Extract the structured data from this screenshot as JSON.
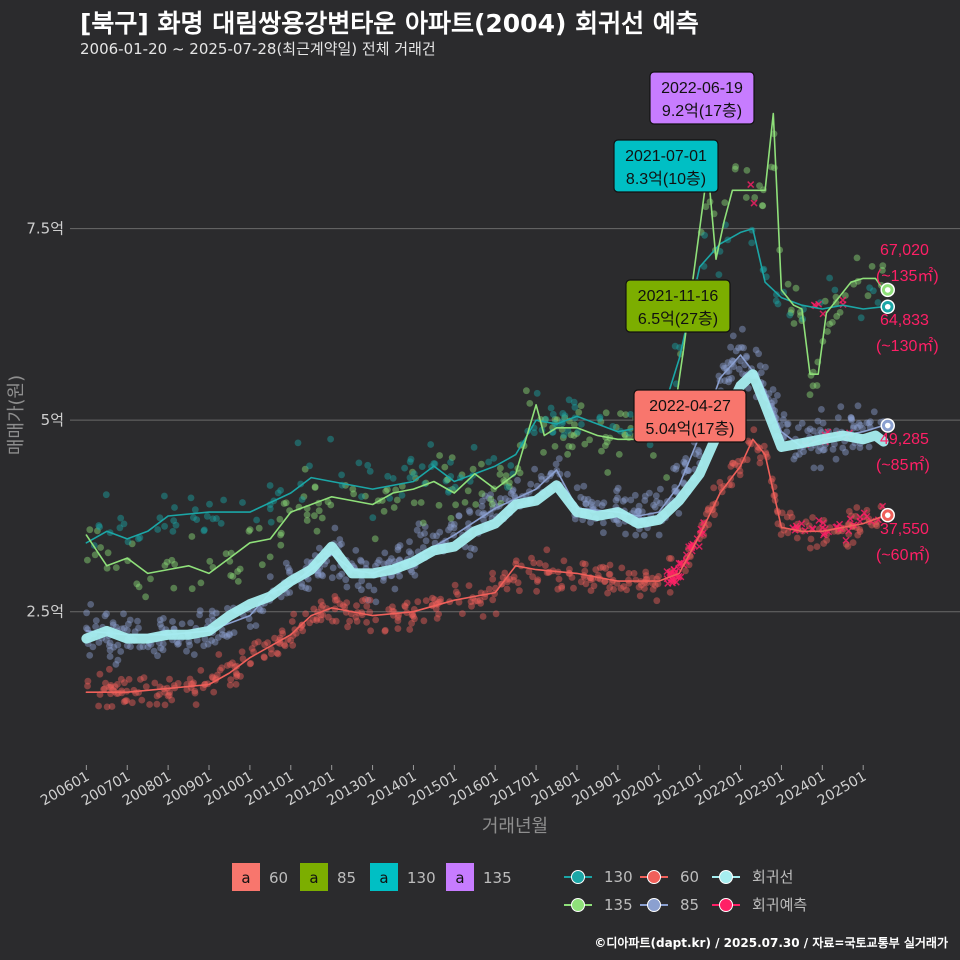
{
  "header": {
    "title": "[북구] 화명 대림쌍용강변타운 아파트(2004) 회귀선 예측",
    "subtitle": "2006-01-20 ~ 2025-07-28(최근계약일) 전체 거래건",
    "credit": "©디아파트(dapt.kr) / 2025.07.30 / 자료=국토교통부 실거래가"
  },
  "colors": {
    "background": "#2b2b2d",
    "grid": "#6a6a6a",
    "s60": "#f0605a",
    "s85": "#8ba0d0",
    "s130": "#1ba6a6",
    "s135": "#8fe07a",
    "regression": "#a6eef0",
    "prediction": "#ff1f66",
    "label60": "#f8766d",
    "label85": "#7cae00",
    "label130": "#00bfc4",
    "label135": "#c77cff"
  },
  "chart_data": {
    "type": "line",
    "xlabel": "거래년월",
    "ylabel": "매매가(원)",
    "ylim": [
      0.5,
      9.7
    ],
    "xlim": [
      2005.6,
      2025.9
    ],
    "y_ticks": [
      {
        "value": 2.5,
        "label": "2.5억"
      },
      {
        "value": 5,
        "label": "5억"
      },
      {
        "value": 7.5,
        "label": "7.5억"
      }
    ],
    "x_ticks": [
      {
        "value": 2006,
        "label": "200601"
      },
      {
        "value": 2007,
        "label": "200701"
      },
      {
        "value": 2008,
        "label": "200801"
      },
      {
        "value": 2009,
        "label": "200901"
      },
      {
        "value": 2010,
        "label": "201001"
      },
      {
        "value": 2011,
        "label": "201101"
      },
      {
        "value": 2012,
        "label": "201201"
      },
      {
        "value": 2013,
        "label": "201301"
      },
      {
        "value": 2014,
        "label": "201401"
      },
      {
        "value": 2015,
        "label": "201501"
      },
      {
        "value": 2016,
        "label": "201601"
      },
      {
        "value": 2017,
        "label": "201701"
      },
      {
        "value": 2018,
        "label": "201801"
      },
      {
        "value": 2019,
        "label": "201901"
      },
      {
        "value": 2020,
        "label": "202001"
      },
      {
        "value": 2021,
        "label": "202101"
      },
      {
        "value": 2022,
        "label": "202201"
      },
      {
        "value": 2023,
        "label": "202301"
      },
      {
        "value": 2024,
        "label": "202401"
      },
      {
        "value": 2025,
        "label": "202501"
      }
    ],
    "series": [
      {
        "name": "60",
        "color": "#f0605a",
        "x": [
          2006.0,
          2007.0,
          2008.0,
          2009.0,
          2009.5,
          2010.0,
          2010.5,
          2011.0,
          2011.5,
          2012.0,
          2013.0,
          2014.0,
          2015.0,
          2016.0,
          2016.5,
          2017.0,
          2018.0,
          2019.0,
          2020.0,
          2020.5,
          2021.0,
          2021.5,
          2022.0,
          2022.3,
          2022.6,
          2023.0,
          2023.5,
          2024.0,
          2024.5,
          2025.0,
          2025.5
        ],
        "values": [
          1.45,
          1.45,
          1.5,
          1.55,
          1.7,
          1.9,
          2.05,
          2.2,
          2.45,
          2.55,
          2.45,
          2.5,
          2.65,
          2.75,
          3.1,
          3.05,
          3.0,
          2.9,
          2.9,
          3.0,
          3.5,
          4.05,
          4.4,
          4.75,
          4.55,
          3.6,
          3.55,
          3.55,
          3.6,
          3.65,
          3.75
        ]
      },
      {
        "name": "85",
        "color": "#8ba0d0",
        "x": [
          2006.0,
          2007.0,
          2008.0,
          2009.0,
          2010.0,
          2010.5,
          2011.0,
          2011.5,
          2012.0,
          2012.5,
          2013.0,
          2014.0,
          2015.0,
          2016.0,
          2017.0,
          2017.5,
          2018.0,
          2019.0,
          2019.5,
          2020.0,
          2020.5,
          2021.0,
          2021.5,
          2022.0,
          2022.5,
          2023.0,
          2023.5,
          2024.0,
          2024.5,
          2025.0,
          2025.5
        ],
        "values": [
          2.25,
          2.2,
          2.2,
          2.25,
          2.45,
          2.75,
          2.85,
          3.05,
          3.25,
          3.05,
          3.0,
          3.2,
          3.5,
          3.85,
          4.1,
          4.35,
          3.85,
          3.8,
          3.75,
          3.8,
          4.15,
          4.8,
          5.55,
          5.85,
          5.5,
          4.85,
          4.65,
          4.75,
          4.8,
          4.85,
          4.93
        ]
      },
      {
        "name": "130",
        "color": "#1ba6a6",
        "x": [
          2006.0,
          2006.5,
          2007.0,
          2007.5,
          2008.0,
          2009.0,
          2010.0,
          2011.0,
          2011.5,
          2012.0,
          2013.0,
          2014.0,
          2014.5,
          2015.0,
          2016.0,
          2016.5,
          2017.0,
          2017.5,
          2018.0,
          2019.0,
          2020.0,
          2020.5,
          2021.0,
          2021.5,
          2022.0,
          2022.3,
          2022.6,
          2023.0,
          2023.5,
          2024.0,
          2024.5,
          2025.0,
          2025.5
        ],
        "values": [
          3.4,
          3.55,
          3.45,
          3.55,
          3.75,
          3.8,
          3.8,
          4.05,
          4.25,
          4.2,
          4.1,
          4.2,
          4.4,
          4.2,
          4.4,
          4.55,
          5.0,
          4.95,
          5.05,
          4.85,
          4.95,
          5.8,
          7.0,
          7.3,
          7.45,
          7.5,
          6.8,
          6.6,
          6.5,
          6.45,
          6.5,
          6.45,
          6.48
        ]
      },
      {
        "name": "135",
        "color": "#8fe07a",
        "x": [
          2006.0,
          2006.5,
          2007.0,
          2007.5,
          2008.0,
          2008.5,
          2009.0,
          2009.5,
          2010.0,
          2010.5,
          2011.0,
          2011.5,
          2012.0,
          2012.5,
          2013.0,
          2013.5,
          2014.0,
          2014.5,
          2015.0,
          2015.5,
          2016.0,
          2016.5,
          2017.0,
          2017.2,
          2017.5,
          2018.0,
          2018.5,
          2019.0,
          2019.5,
          2020.0,
          2020.3,
          2020.6,
          2021.0,
          2021.2,
          2021.4,
          2021.6,
          2021.8,
          2022.0,
          2022.3,
          2022.6,
          2022.8,
          2023.0,
          2023.3,
          2023.5,
          2023.7,
          2023.9,
          2024.1,
          2024.4,
          2024.7,
          2025.0,
          2025.3,
          2025.5
        ],
        "values": [
          3.5,
          3.1,
          3.2,
          3.0,
          3.05,
          3.1,
          3.0,
          3.2,
          3.4,
          3.45,
          3.8,
          3.9,
          4.0,
          3.95,
          3.9,
          4.05,
          4.1,
          4.2,
          4.05,
          4.3,
          4.1,
          4.3,
          5.2,
          4.8,
          4.9,
          4.9,
          4.8,
          4.75,
          4.75,
          4.95,
          4.8,
          5.9,
          7.5,
          8.3,
          7.1,
          7.6,
          8.0,
          8.0,
          8.0,
          8.0,
          9.0,
          6.7,
          6.5,
          6.45,
          5.6,
          5.6,
          6.4,
          6.6,
          6.8,
          6.85,
          6.85,
          6.7
        ]
      },
      {
        "name": "회귀선",
        "color": "#a6eef0",
        "x": [
          2006.0,
          2006.5,
          2007.0,
          2007.5,
          2008.0,
          2008.5,
          2009.0,
          2009.5,
          2010.0,
          2010.5,
          2011.0,
          2011.5,
          2012.0,
          2012.5,
          2013.0,
          2013.5,
          2014.0,
          2014.5,
          2015.0,
          2015.5,
          2016.0,
          2016.5,
          2017.0,
          2017.5,
          2018.0,
          2018.5,
          2019.0,
          2019.5,
          2020.0,
          2020.5,
          2021.0,
          2021.5,
          2022.0,
          2022.3,
          2022.6,
          2023.0,
          2023.5,
          2024.0,
          2024.5,
          2025.0,
          2025.3,
          2025.5
        ],
        "values": [
          2.15,
          2.25,
          2.15,
          2.15,
          2.2,
          2.2,
          2.25,
          2.45,
          2.6,
          2.7,
          2.9,
          3.05,
          3.35,
          3.0,
          3.0,
          3.05,
          3.15,
          3.3,
          3.35,
          3.55,
          3.65,
          3.9,
          3.95,
          4.15,
          3.8,
          3.75,
          3.8,
          3.65,
          3.7,
          3.95,
          4.3,
          4.9,
          5.45,
          5.6,
          5.2,
          4.65,
          4.7,
          4.75,
          4.8,
          4.75,
          4.8,
          4.72
        ]
      }
    ],
    "scatter_counts": {
      "60": 460,
      "85": 620,
      "130": 150,
      "135": 220
    },
    "highlights": [
      {
        "x": 2021.5,
        "y": 8.3,
        "date": "2021-07-01",
        "value_label": "8.3억(10층)",
        "color": "#00bfc4",
        "series": "130"
      },
      {
        "x": 2022.45,
        "y": 9.2,
        "date": "2022-06-19",
        "value_label": "9.2억(17층)",
        "color": "#c77cff",
        "series": "135"
      },
      {
        "x": 2021.85,
        "y": 6.5,
        "date": "2021-11-16",
        "value_label": "6.5억(27층)",
        "color": "#7cae00",
        "series": "85"
      },
      {
        "x": 2022.3,
        "y": 5.04,
        "date": "2022-04-27",
        "value_label": "5.04억(17층)",
        "color": "#f8766d",
        "series": "60"
      }
    ],
    "predictions": [
      {
        "series": "135",
        "value": 6.7,
        "price": "67,020",
        "area": "(~135㎡)",
        "color": "#8fe07a"
      },
      {
        "series": "130",
        "value": 6.48,
        "price": "64,833",
        "area": "(~130㎡)",
        "color": "#1ba6a6"
      },
      {
        "series": "85",
        "value": 4.93,
        "price": "49,285",
        "area": "(~85㎡)",
        "color": "#8ba0d0"
      },
      {
        "series": "60",
        "value": 3.76,
        "price": "37,550",
        "area": "(~60㎡)",
        "color": "#f0605a"
      }
    ]
  },
  "legend": {
    "area_label": "a",
    "area_keys": [
      {
        "label": "60",
        "color": "#f8766d"
      },
      {
        "label": "85",
        "color": "#7cae00"
      },
      {
        "label": "130",
        "color": "#00bfc4"
      },
      {
        "label": "135",
        "color": "#c77cff"
      }
    ],
    "line_keys": [
      {
        "label": "130",
        "color": "#1ba6a6"
      },
      {
        "label": "60",
        "color": "#f0605a"
      },
      {
        "label": "회귀선",
        "color": "#a6eef0"
      },
      {
        "label": "135",
        "color": "#8fe07a"
      },
      {
        "label": "85",
        "color": "#8ba0d0"
      },
      {
        "label": "회귀예측",
        "color": "#ff1f66"
      }
    ]
  }
}
